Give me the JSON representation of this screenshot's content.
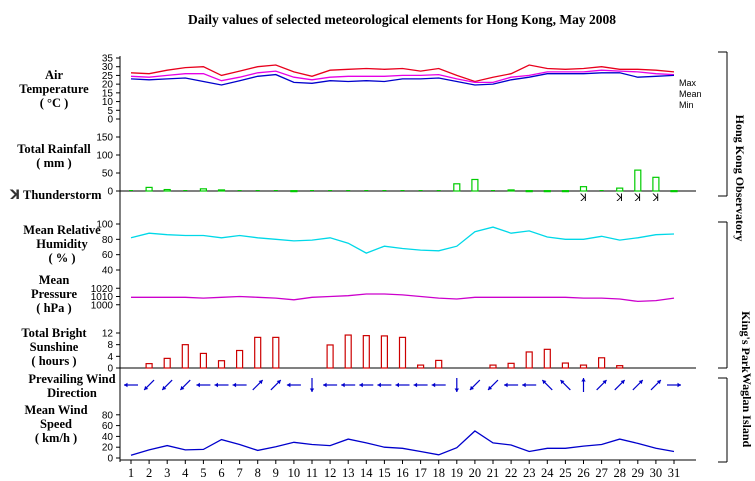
{
  "title": "Daily values of selected meteorological elements for Hong Kong, May 2008",
  "labels": {
    "temp": [
      "Air",
      "Temperature",
      "( °C )"
    ],
    "rain": [
      "Total Rainfall",
      "( mm )"
    ],
    "thunder": "Thunderstorm",
    "humidity": [
      "Mean Relative",
      "Humidity",
      "( % )"
    ],
    "pressure": [
      "Mean",
      "Pressure",
      "( hPa )"
    ],
    "sunshine": [
      "Total Bright",
      "Sunshine",
      "( hours )"
    ],
    "wind_dir": [
      "Prevailing Wind",
      "Direction"
    ],
    "wind_speed": [
      "Mean Wind",
      "Speed",
      "( km/h )"
    ]
  },
  "legend": {
    "max": "Max",
    "mean": "Mean",
    "min": "Min"
  },
  "stations": {
    "hko": "Hong Kong Observatory",
    "kp": "King's Park",
    "wi": "Waglan Island"
  },
  "thunder_symbol": "ꓘ",
  "colors": {
    "max": "#e8001c",
    "mean": "#e600e6",
    "min": "#0000cc",
    "rain": "#00cc00",
    "humidity": "#00d8e8",
    "pressure": "#cc00cc",
    "sunshine": "#cc0000",
    "wind": "#0000cc"
  },
  "chart_data": {
    "type": "line",
    "x": [
      1,
      2,
      3,
      4,
      5,
      6,
      7,
      8,
      9,
      10,
      11,
      12,
      13,
      14,
      15,
      16,
      17,
      18,
      19,
      20,
      21,
      22,
      23,
      24,
      25,
      26,
      27,
      28,
      29,
      30,
      31
    ],
    "panels": [
      {
        "name": "temperature",
        "ylim": [
          0,
          35
        ],
        "yticks": [
          0,
          5,
          10,
          15,
          20,
          25,
          30,
          35
        ],
        "series": [
          {
            "name": "Max",
            "values": [
              26.5,
              26,
              28,
              29.5,
              30,
              25,
              27.5,
              30,
              31,
              27,
              24.5,
              28,
              28.5,
              29,
              28.5,
              29,
              27.5,
              29,
              25,
              21.5,
              24,
              26,
              31,
              29,
              28.5,
              29,
              30,
              28.5,
              28.5,
              28,
              27
            ]
          },
          {
            "name": "Mean",
            "values": [
              24.5,
              24,
              25,
              26,
              26,
              22,
              24,
              26.5,
              27.5,
              24,
              22.5,
              24,
              24.5,
              24.5,
              24.5,
              25,
              25,
              25.5,
              23,
              21,
              21,
              24,
              25,
              27,
              27,
              27,
              28,
              27.5,
              27,
              26,
              25.5
            ]
          },
          {
            "name": "Min",
            "values": [
              23,
              22.5,
              23,
              23.5,
              21.5,
              19.5,
              22,
              24.5,
              25.5,
              21,
              20.5,
              22,
              21.5,
              22,
              21.5,
              23,
              23,
              23.5,
              21.5,
              19.5,
              20,
              22.5,
              24,
              26,
              26,
              26,
              26.5,
              26.5,
              24,
              24.5,
              25
            ]
          }
        ]
      },
      {
        "name": "rainfall",
        "type": "bar",
        "ylim": [
          0,
          150
        ],
        "yticks": [
          0,
          50,
          100,
          150
        ],
        "values": [
          0,
          10,
          4,
          0,
          6,
          3,
          0,
          0,
          0,
          1,
          0,
          0,
          0,
          0,
          0,
          0,
          0,
          0,
          20,
          32,
          0,
          3,
          1,
          1,
          1,
          12,
          0,
          8,
          58,
          38,
          1
        ]
      },
      {
        "name": "thunderstorm",
        "days": [
          26,
          28,
          29,
          30
        ]
      },
      {
        "name": "humidity",
        "ylim": [
          40,
          100
        ],
        "yticks": [
          40,
          60,
          80,
          100
        ],
        "values": [
          82,
          88,
          86,
          85,
          85,
          82,
          85,
          82,
          80,
          78,
          79,
          82,
          75,
          62,
          71,
          68,
          66,
          65,
          71,
          90,
          96,
          88,
          91,
          83,
          80,
          80,
          84,
          79,
          82,
          86,
          87
        ]
      },
      {
        "name": "pressure",
        "ylim": [
          990,
          1030
        ],
        "yticks": [
          1000,
          1010,
          1020
        ],
        "values": [
          1009,
          1009,
          1009,
          1009,
          1008,
          1009,
          1010,
          1009,
          1008,
          1006,
          1009,
          1010,
          1011,
          1013,
          1013,
          1012,
          1010,
          1008,
          1007,
          1009,
          1009,
          1009,
          1009,
          1009,
          1009,
          1008,
          1008,
          1007,
          1004,
          1005,
          1008
        ]
      },
      {
        "name": "sunshine",
        "type": "bar",
        "ylim": [
          0,
          12
        ],
        "yticks": [
          0,
          4,
          8,
          12
        ],
        "values": [
          0,
          1.5,
          3.3,
          8,
          5,
          2.5,
          6,
          10.5,
          10.5,
          0,
          0,
          7.9,
          11.3,
          11.1,
          11,
          10.5,
          1,
          2.6,
          0,
          0,
          1,
          1.6,
          5.5,
          6.4,
          1.7,
          1,
          3.5,
          0.8,
          0,
          0,
          0
        ]
      },
      {
        "name": "wind_direction",
        "values": [
          "E",
          "NE",
          "NE",
          "NE",
          "E",
          "E",
          "E",
          "SW",
          "SW",
          "E",
          "N",
          "E",
          "E",
          "E",
          "E",
          "E",
          "E",
          "E",
          "N",
          "NE",
          "NE",
          "E",
          "E",
          "SE",
          "SE",
          "S",
          "SW",
          "SW",
          "SW",
          "SW",
          "W"
        ]
      },
      {
        "name": "wind_speed",
        "ylim": [
          0,
          100
        ],
        "yticks": [
          0,
          20,
          40,
          60,
          80
        ],
        "values": [
          5,
          15,
          23,
          15,
          16,
          34,
          25,
          14,
          21,
          29,
          25,
          23,
          35,
          28,
          20,
          18,
          12,
          6,
          19,
          50,
          28,
          24,
          12,
          18,
          18,
          22,
          25,
          35,
          27,
          18,
          12
        ]
      }
    ]
  }
}
